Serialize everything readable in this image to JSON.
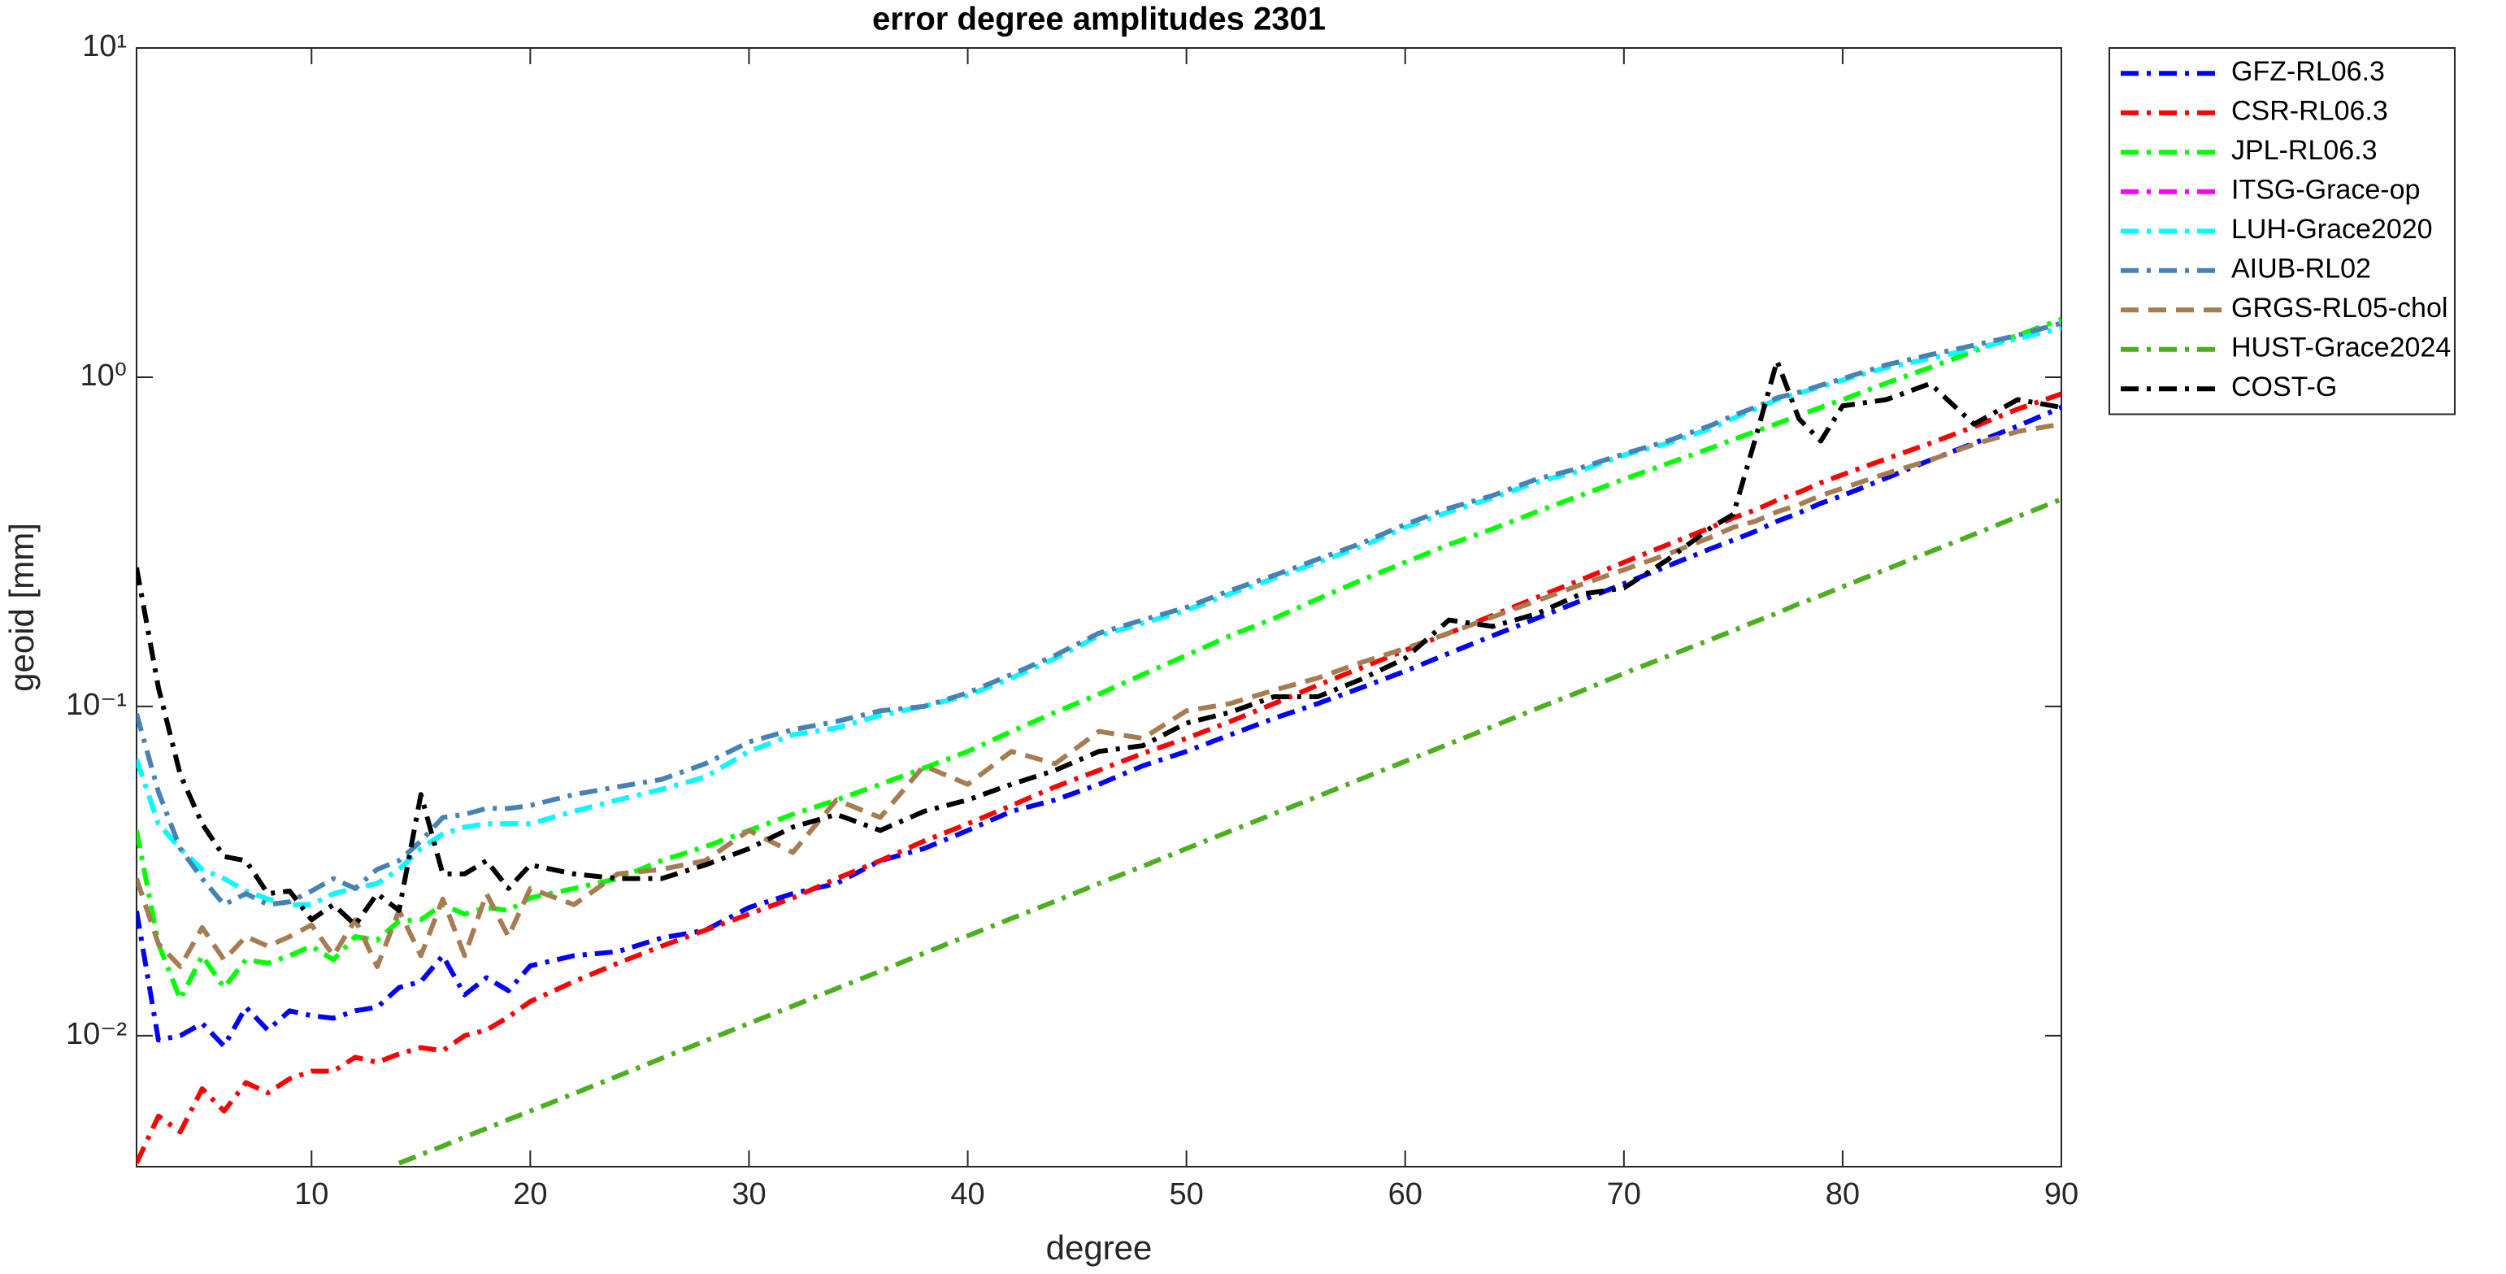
{
  "chart_data": {
    "type": "line",
    "title": "error degree amplitudes 2301",
    "x_label": "degree",
    "y_label": "geoid [mm]",
    "ylog": true,
    "legend": "northeastoutside",
    "xlim": [
      2,
      90
    ],
    "ylim": [
      0.004,
      10
    ],
    "xticks": [
      10,
      20,
      30,
      40,
      50,
      60,
      70,
      80,
      90
    ],
    "yticks": [
      {
        "value": 0.01,
        "label": "10⁻²"
      },
      {
        "value": 0.1,
        "label": "10⁻¹"
      },
      {
        "value": 1,
        "label": "10⁰"
      },
      {
        "value": 10,
        "label": "10¹"
      }
    ],
    "x": [
      2,
      3,
      4,
      5,
      6,
      7,
      8,
      9,
      10,
      11,
      12,
      13,
      14,
      15,
      16,
      17,
      18,
      19,
      20,
      22,
      24,
      26,
      28,
      30,
      32,
      34,
      36,
      38,
      40,
      42,
      44,
      46,
      48,
      50,
      52,
      54,
      56,
      58,
      60,
      62,
      64,
      66,
      68,
      70,
      72,
      74,
      75,
      76,
      77,
      78,
      79,
      80,
      82,
      84,
      86,
      88,
      90
    ],
    "series": [
      {
        "name": "GFZ-RL06.3",
        "color": "#0000ff",
        "style": "dashdot",
        "values": [
          0.0239,
          0.0097,
          0.01,
          0.0109,
          0.0093,
          0.0122,
          0.0104,
          0.0119,
          0.0115,
          0.0113,
          0.0119,
          0.0122,
          0.014,
          0.0146,
          0.0175,
          0.0133,
          0.015,
          0.0137,
          0.0163,
          0.0175,
          0.018,
          0.0198,
          0.0209,
          0.0245,
          0.027,
          0.029,
          0.034,
          0.037,
          0.042,
          0.048,
          0.052,
          0.058,
          0.066,
          0.073,
          0.082,
          0.092,
          0.102,
          0.114,
          0.128,
          0.145,
          0.164,
          0.185,
          0.209,
          0.236,
          0.267,
          0.302,
          0.32,
          0.34,
          0.365,
          0.387,
          0.414,
          0.437,
          0.494,
          0.56,
          0.63,
          0.71,
          0.81
        ]
      },
      {
        "name": "CSR-RL06.3",
        "color": "#ff0000",
        "style": "dashdot",
        "values": [
          0.0041,
          0.0057,
          0.0051,
          0.0069,
          0.0059,
          0.0072,
          0.0067,
          0.0074,
          0.0078,
          0.0078,
          0.0086,
          0.0083,
          0.0088,
          0.0092,
          0.009,
          0.01,
          0.0104,
          0.0114,
          0.0127,
          0.0146,
          0.0166,
          0.0187,
          0.0209,
          0.0234,
          0.0262,
          0.03,
          0.034,
          0.039,
          0.044,
          0.05,
          0.057,
          0.064,
          0.072,
          0.08,
          0.09,
          0.102,
          0.116,
          0.131,
          0.148,
          0.167,
          0.189,
          0.214,
          0.242,
          0.274,
          0.31,
          0.35,
          0.374,
          0.395,
          0.423,
          0.447,
          0.478,
          0.506,
          0.565,
          0.63,
          0.707,
          0.8,
          0.89
        ]
      },
      {
        "name": "JPL-RL06.3",
        "color": "#00ff00",
        "style": "dashdot",
        "values": [
          0.042,
          0.019,
          0.0129,
          0.0175,
          0.014,
          0.017,
          0.0166,
          0.0175,
          0.0187,
          0.017,
          0.02,
          0.0195,
          0.0223,
          0.0225,
          0.025,
          0.0234,
          0.0245,
          0.024,
          0.0262,
          0.028,
          0.03,
          0.034,
          0.0375,
          0.042,
          0.047,
          0.052,
          0.058,
          0.065,
          0.073,
          0.084,
          0.096,
          0.109,
          0.125,
          0.143,
          0.164,
          0.185,
          0.212,
          0.242,
          0.274,
          0.31,
          0.346,
          0.39,
          0.437,
          0.49,
          0.547,
          0.61,
          0.647,
          0.684,
          0.723,
          0.765,
          0.81,
          0.855,
          0.96,
          1.07,
          1.2,
          1.34,
          1.5
        ]
      },
      {
        "name": "ITSG-Grace-op",
        "color": "#ff00ff",
        "style": "dashdot",
        "values": [
          0.069,
          0.044,
          0.037,
          0.032,
          0.03,
          0.0275,
          0.026,
          0.025,
          0.025,
          0.027,
          0.028,
          0.029,
          0.032,
          0.037,
          0.041,
          0.043,
          0.044,
          0.044,
          0.044,
          0.048,
          0.052,
          0.056,
          0.061,
          0.073,
          0.082,
          0.086,
          0.094,
          0.1,
          0.108,
          0.122,
          0.14,
          0.164,
          0.179,
          0.196,
          0.22,
          0.245,
          0.274,
          0.306,
          0.35,
          0.39,
          0.43,
          0.48,
          0.52,
          0.58,
          0.63,
          0.7,
          0.75,
          0.8,
          0.855,
          0.894,
          0.935,
          0.98,
          1.07,
          1.14,
          1.22,
          1.31,
          1.41
        ]
      },
      {
        "name": "LUH-Grace2020",
        "color": "#00ffff",
        "style": "dashdot",
        "values": [
          0.069,
          0.044,
          0.037,
          0.032,
          0.03,
          0.0275,
          0.026,
          0.025,
          0.025,
          0.027,
          0.028,
          0.029,
          0.032,
          0.037,
          0.041,
          0.043,
          0.044,
          0.044,
          0.044,
          0.048,
          0.052,
          0.056,
          0.061,
          0.073,
          0.082,
          0.086,
          0.094,
          0.1,
          0.108,
          0.122,
          0.14,
          0.164,
          0.179,
          0.196,
          0.22,
          0.245,
          0.274,
          0.306,
          0.35,
          0.39,
          0.43,
          0.48,
          0.52,
          0.58,
          0.63,
          0.7,
          0.75,
          0.8,
          0.855,
          0.894,
          0.935,
          0.98,
          1.07,
          1.14,
          1.22,
          1.31,
          1.41
        ]
      },
      {
        "name": "AIUB-RL02",
        "color": "#4682b4",
        "style": "dashdot",
        "values": [
          0.095,
          0.055,
          0.037,
          0.03,
          0.025,
          0.027,
          0.025,
          0.0255,
          0.0275,
          0.03,
          0.028,
          0.032,
          0.034,
          0.039,
          0.046,
          0.047,
          0.049,
          0.049,
          0.05,
          0.054,
          0.057,
          0.06,
          0.067,
          0.078,
          0.085,
          0.09,
          0.097,
          0.1,
          0.11,
          0.125,
          0.143,
          0.167,
          0.183,
          0.2,
          0.225,
          0.25,
          0.28,
          0.313,
          0.357,
          0.4,
          0.437,
          0.49,
          0.53,
          0.585,
          0.64,
          0.715,
          0.765,
          0.81,
          0.865,
          0.9,
          0.945,
          0.99,
          1.09,
          1.17,
          1.25,
          1.34,
          1.46
        ]
      },
      {
        "name": "GRGS-RL05-chol",
        "color": "#a67c52",
        "style": "dash",
        "values": [
          0.03,
          0.019,
          0.0162,
          0.0213,
          0.017,
          0.02,
          0.0187,
          0.02,
          0.0217,
          0.0175,
          0.0225,
          0.0162,
          0.024,
          0.0175,
          0.026,
          0.0175,
          0.027,
          0.02,
          0.028,
          0.025,
          0.031,
          0.032,
          0.034,
          0.042,
          0.036,
          0.052,
          0.046,
          0.066,
          0.058,
          0.073,
          0.067,
          0.084,
          0.08,
          0.097,
          0.102,
          0.112,
          0.122,
          0.136,
          0.15,
          0.167,
          0.187,
          0.209,
          0.234,
          0.26,
          0.29,
          0.327,
          0.35,
          0.365,
          0.39,
          0.41,
          0.437,
          0.46,
          0.51,
          0.56,
          0.625,
          0.684,
          0.72
        ]
      },
      {
        "name": "HUST-Grace2024",
        "color": "#4caf1f",
        "style": "dashdot",
        "values": [
          null,
          null,
          null,
          null,
          null,
          null,
          null,
          null,
          null,
          null,
          null,
          null,
          0.0041,
          0.00435,
          0.00462,
          0.00492,
          0.00523,
          0.00556,
          0.0059,
          0.00667,
          0.00754,
          0.00853,
          0.00964,
          0.0109,
          0.0123,
          0.0139,
          0.0157,
          0.0178,
          0.0201,
          0.0227,
          0.0256,
          0.029,
          0.0327,
          0.037,
          0.0418,
          0.0472,
          0.0533,
          0.0603,
          0.0681,
          0.0769,
          0.0869,
          0.0984,
          0.111,
          0.126,
          0.142,
          0.16,
          0.17,
          0.181,
          0.192,
          0.205,
          0.217,
          0.231,
          0.261,
          0.295,
          0.333,
          0.377,
          0.426
        ]
      },
      {
        "name": "COST-G",
        "color": "#000000",
        "style": "dashdot",
        "values": [
          0.264,
          0.114,
          0.062,
          0.044,
          0.035,
          0.034,
          0.027,
          0.0275,
          0.0225,
          0.025,
          0.0217,
          0.027,
          0.024,
          0.054,
          0.031,
          0.031,
          0.034,
          0.028,
          0.033,
          0.031,
          0.03,
          0.03,
          0.033,
          0.037,
          0.043,
          0.047,
          0.042,
          0.048,
          0.052,
          0.058,
          0.064,
          0.073,
          0.076,
          0.089,
          0.096,
          0.107,
          0.107,
          0.121,
          0.14,
          0.183,
          0.175,
          0.191,
          0.219,
          0.229,
          0.279,
          0.35,
          0.383,
          0.647,
          1.12,
          0.748,
          0.64,
          0.818,
          0.855,
          0.956,
          0.72,
          0.855,
          0.81
        ]
      }
    ]
  }
}
